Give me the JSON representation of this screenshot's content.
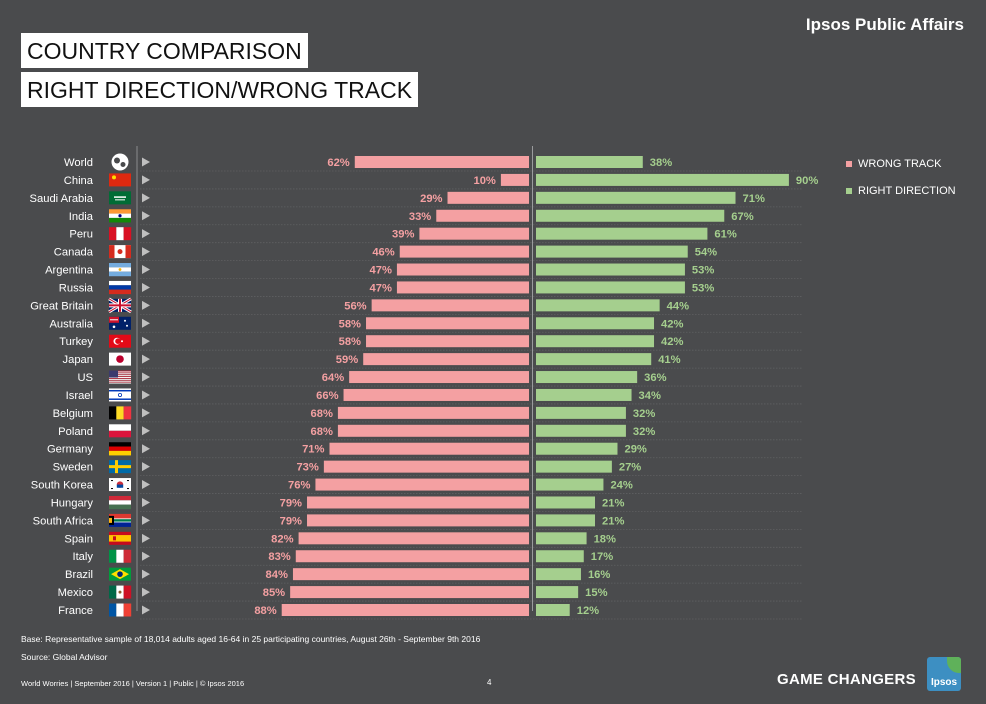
{
  "header": {
    "brand": "Ipsos Public Affairs",
    "title_line1": "COUNTRY COMPARISON",
    "title_line2": "RIGHT DIRECTION/WRONG TRACK"
  },
  "colors": {
    "wrong": "#f4a0a2",
    "right": "#a5cf8e",
    "wrong_text": "#f4a0a2",
    "right_text": "#a5cf8e",
    "background": "#4a4b4d"
  },
  "chart_data": {
    "type": "bar",
    "categories": [
      "World",
      "China",
      "Saudi Arabia",
      "India",
      "Peru",
      "Canada",
      "Argentina",
      "Russia",
      "Great Britain",
      "Australia",
      "Turkey",
      "Japan",
      "US",
      "Israel",
      "Belgium",
      "Poland",
      "Germany",
      "Sweden",
      "South Korea",
      "Hungary",
      "South Africa",
      "Spain",
      "Italy",
      "Brazil",
      "Mexico",
      "France"
    ],
    "flag_icons": [
      "globe-icon",
      "flag-china",
      "flag-saudi-arabia",
      "flag-india",
      "flag-peru",
      "flag-canada",
      "flag-argentina",
      "flag-russia",
      "flag-great-britain",
      "flag-australia",
      "flag-turkey",
      "flag-japan",
      "flag-us",
      "flag-israel",
      "flag-belgium",
      "flag-poland",
      "flag-germany",
      "flag-sweden",
      "flag-south-korea",
      "flag-hungary",
      "flag-south-africa",
      "flag-spain",
      "flag-italy",
      "flag-brazil",
      "flag-mexico",
      "flag-france"
    ],
    "series": [
      {
        "name": "WRONG TRACK",
        "values": [
          62,
          10,
          29,
          33,
          39,
          46,
          47,
          47,
          56,
          58,
          58,
          59,
          64,
          66,
          68,
          68,
          71,
          73,
          76,
          79,
          79,
          82,
          83,
          84,
          85,
          88
        ]
      },
      {
        "name": "RIGHT DIRECTION",
        "values": [
          38,
          90,
          71,
          67,
          61,
          54,
          53,
          53,
          44,
          42,
          42,
          41,
          36,
          34,
          32,
          32,
          29,
          27,
          24,
          21,
          21,
          18,
          17,
          16,
          15,
          12
        ]
      }
    ],
    "value_suffix": "%",
    "legend_position": "right",
    "grid": false
  },
  "footer": {
    "base": "Base: Representative sample of 18,014 adults aged 16-64 in 25 participating countries, August 26th - September 9th 2016",
    "source": "Source: Global Advisor",
    "meta": "World Worries | September 2016 | Version 1 | Public | © Ipsos 2016",
    "page_number": "4",
    "tagline": "GAME CHANGERS",
    "logo_text": "Ipsos"
  }
}
